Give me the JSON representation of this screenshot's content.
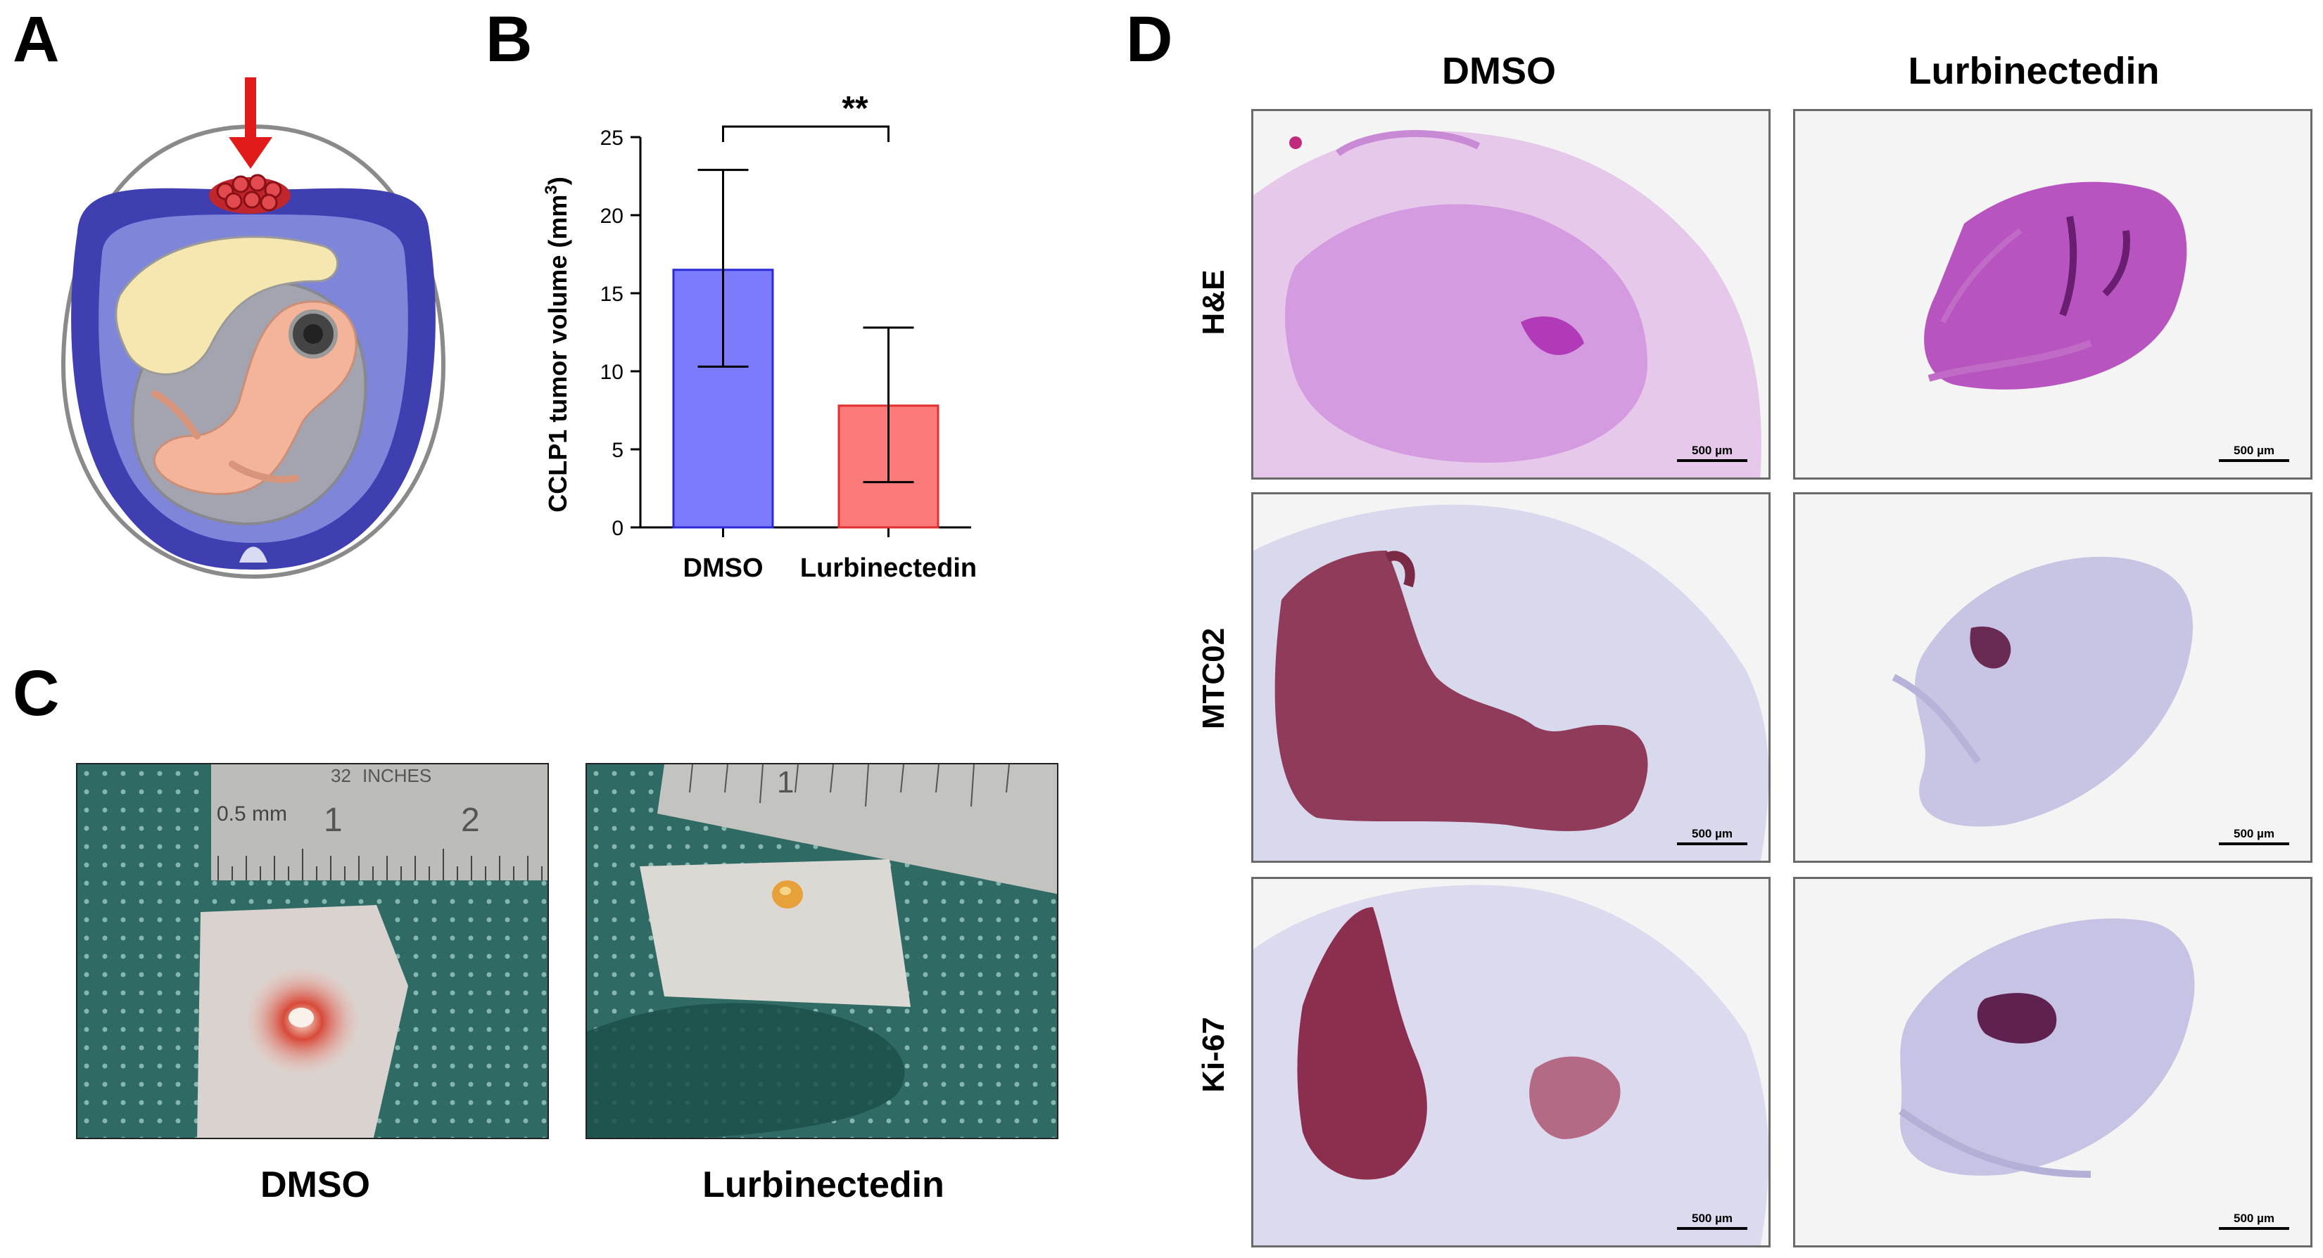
{
  "panels": {
    "a": {
      "letter": "A"
    },
    "b": {
      "letter": "B"
    },
    "c": {
      "letter": "C",
      "captions": [
        "DMSO",
        "Lurbinectedin"
      ],
      "ruler_left": {
        "mark1": "32",
        "units": "INCHES",
        "scale": "0.5 mm",
        "n1": "1",
        "n2": "2"
      },
      "ruler_right": {
        "n1": "1"
      }
    },
    "d": {
      "letter": "D",
      "col_headers": [
        "DMSO",
        "Lurbinectedin"
      ],
      "row_labels": [
        "H&E",
        "MTC02",
        "Ki-67"
      ],
      "scale_label": "500 µm"
    }
  },
  "chart_data": {
    "type": "bar",
    "title": "",
    "categories": [
      "DMSO",
      "Lurbinectedin"
    ],
    "values": [
      16.5,
      7.8
    ],
    "error_high": [
      22.9,
      12.8
    ],
    "error_low": [
      10.3,
      2.9
    ],
    "bar_colors": [
      "#7b7bfb",
      "#fb7b7b"
    ],
    "bar_edge_colors": [
      "#2a2ad8",
      "#e03030"
    ],
    "xlabel": "",
    "ylabel": "CCLP1 tumor volume (mm",
    "ylabel_sup": "3",
    "ylabel_close": ")",
    "ylim": [
      0,
      25
    ],
    "yticks": [
      0,
      5,
      10,
      15,
      20,
      25
    ],
    "significance": "**"
  }
}
